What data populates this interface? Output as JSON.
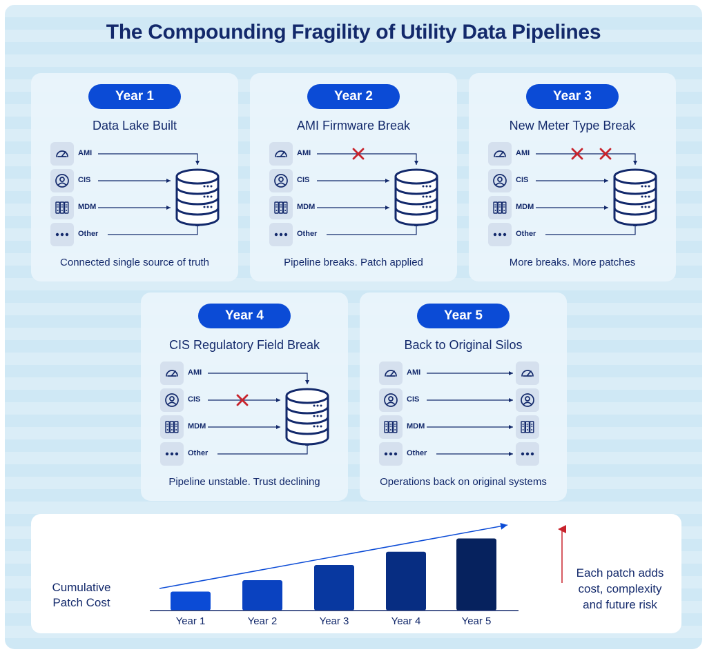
{
  "title": "The Compounding Fragility of Utility Data Pipelines",
  "colors": {
    "brand_blue": "#0b4bd6",
    "navy": "#13296b",
    "break_red": "#c8232c",
    "icon_box": "#d5e0ee"
  },
  "cards": [
    {
      "year": "Year 1",
      "title": "Data Lake Built",
      "caption": "Connected single source of truth",
      "destination": "database",
      "sources": [
        {
          "label": "AMI",
          "icon": "gauge-icon",
          "breaks": 0
        },
        {
          "label": "CIS",
          "icon": "user-icon",
          "breaks": 0
        },
        {
          "label": "MDM",
          "icon": "server-icon",
          "breaks": 0
        },
        {
          "label": "Other",
          "icon": "dots-icon",
          "breaks": 0
        }
      ]
    },
    {
      "year": "Year 2",
      "title": "AMI Firmware Break",
      "caption": "Pipeline breaks. Patch applied",
      "destination": "database",
      "sources": [
        {
          "label": "AMI",
          "icon": "gauge-icon",
          "breaks": 1
        },
        {
          "label": "CIS",
          "icon": "user-icon",
          "breaks": 0
        },
        {
          "label": "MDM",
          "icon": "server-icon",
          "breaks": 0
        },
        {
          "label": "Other",
          "icon": "dots-icon",
          "breaks": 0
        }
      ]
    },
    {
      "year": "Year 3",
      "title": "New Meter Type Break",
      "caption": "More breaks. More patches",
      "destination": "database",
      "sources": [
        {
          "label": "AMI",
          "icon": "gauge-icon",
          "breaks": 2
        },
        {
          "label": "CIS",
          "icon": "user-icon",
          "breaks": 0
        },
        {
          "label": "MDM",
          "icon": "server-icon",
          "breaks": 0
        },
        {
          "label": "Other",
          "icon": "dots-icon",
          "breaks": 0
        }
      ]
    },
    {
      "year": "Year 4",
      "title": "CIS Regulatory Field Break",
      "caption": "Pipeline unstable. Trust declining",
      "destination": "database",
      "sources": [
        {
          "label": "AMI",
          "icon": "gauge-icon",
          "breaks": 0
        },
        {
          "label": "CIS",
          "icon": "user-icon",
          "breaks": 1
        },
        {
          "label": "MDM",
          "icon": "server-icon",
          "breaks": 0
        },
        {
          "label": "Other",
          "icon": "dots-icon",
          "breaks": 0
        }
      ]
    },
    {
      "year": "Year 5",
      "title": "Back to Original Silos",
      "caption": "Operations back on original systems",
      "destination": "silos",
      "sources": [
        {
          "label": "AMI",
          "icon": "gauge-icon",
          "breaks": 0
        },
        {
          "label": "CIS",
          "icon": "user-icon",
          "breaks": 0
        },
        {
          "label": "MDM",
          "icon": "server-icon",
          "breaks": 0
        },
        {
          "label": "Other",
          "icon": "dots-icon",
          "breaks": 0
        }
      ]
    }
  ],
  "chart_data": {
    "type": "bar",
    "ylabel": "Cumulative Patch Cost",
    "categories": [
      "Year 1",
      "Year 2",
      "Year 3",
      "Year 4",
      "Year 5"
    ],
    "values": [
      1,
      1.6,
      2.4,
      3.1,
      3.8
    ],
    "ylim": [
      0,
      4
    ],
    "bar_colors": [
      "#0b4bd6",
      "#0a42c0",
      "#0838a0",
      "#072d82",
      "#06225e"
    ],
    "trend": "increasing",
    "grid": false
  },
  "chart_note": {
    "lines": [
      "Each patch adds",
      "cost, complexity",
      "and future risk"
    ]
  }
}
